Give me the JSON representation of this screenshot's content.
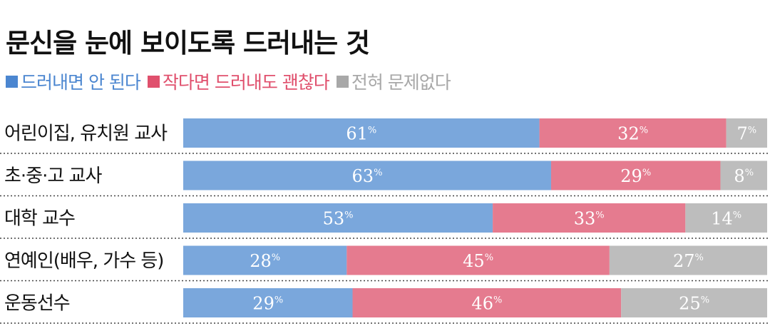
{
  "chart_data": {
    "type": "bar",
    "orientation": "horizontal-stacked-100",
    "title": "문신을 눈에 보이도록 드러내는 것",
    "categories": [
      "어린이집, 유치원 교사",
      "초·중·고 교사",
      "대학 교수",
      "연예인(배우, 가수 등)",
      "운동선수"
    ],
    "series": [
      {
        "name": "드러내면 안 된다",
        "color": "#7aa7dc",
        "values": [
          61,
          63,
          53,
          28,
          29
        ]
      },
      {
        "name": "작다면 드러내도 괜찮다",
        "color": "#e57b8f",
        "values": [
          32,
          29,
          33,
          45,
          46
        ]
      },
      {
        "name": "전혀 문제없다",
        "color": "#bdbdbd",
        "values": [
          7,
          8,
          14,
          27,
          25
        ]
      }
    ],
    "unit": "%",
    "xlim": [
      0,
      100
    ],
    "legend_position": "top-left"
  }
}
